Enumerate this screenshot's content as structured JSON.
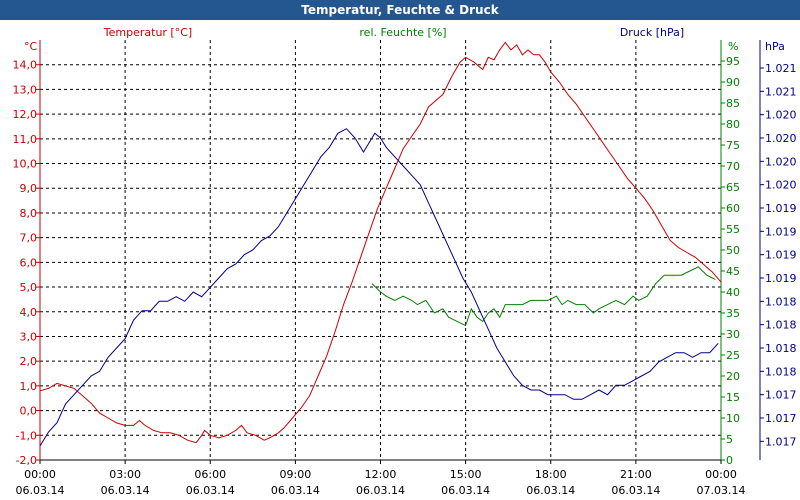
{
  "window_title": "Temperatur, Feuchte & Druck",
  "chart_data": {
    "type": "line",
    "title": "Temperatur, Feuchte & Druck",
    "x_ticks": [
      {
        "time": "00:00",
        "date": "06.03.14"
      },
      {
        "time": "03:00",
        "date": "06.03.14"
      },
      {
        "time": "06:00",
        "date": "06.03.14"
      },
      {
        "time": "09:00",
        "date": "06.03.14"
      },
      {
        "time": "12:00",
        "date": "06.03.14"
      },
      {
        "time": "15:00",
        "date": "06.03.14"
      },
      {
        "time": "18:00",
        "date": "06.03.14"
      },
      {
        "time": "21:00",
        "date": "06.03.14"
      },
      {
        "time": "00:00",
        "date": "07.03.14"
      }
    ],
    "x_range_hours": [
      0,
      24
    ],
    "colors": {
      "temperature": "#cc0000",
      "humidity": "#008000",
      "pressure": "#00008b"
    },
    "axes": {
      "temperature": {
        "unit": "°C",
        "label": "Temperatur [°C]",
        "range": [
          -2.0,
          15.0
        ],
        "ticks": [
          "-2,0",
          "-1,0",
          "0,0",
          "1,0",
          "2,0",
          "3,0",
          "4,0",
          "5,0",
          "6,0",
          "7,0",
          "8,0",
          "9,0",
          "10,0",
          "11,0",
          "12,0",
          "13,0",
          "14,0"
        ]
      },
      "humidity": {
        "unit": "%",
        "label": "rel. Feuchte [%]",
        "range": [
          0,
          100
        ],
        "ticks": [
          "0",
          "5",
          "10",
          "15",
          "20",
          "25",
          "30",
          "35",
          "40",
          "45",
          "50",
          "55",
          "60",
          "65",
          "70",
          "75",
          "80",
          "85",
          "90",
          "95"
        ]
      },
      "pressure": {
        "unit": "hPa",
        "label": "Druck [hPa]",
        "range": [
          1016.8,
          1021.3
        ],
        "ticks": [
          {
            "v": 1017.0,
            "t": "1.017"
          },
          {
            "v": 1017.25,
            "t": "1.017"
          },
          {
            "v": 1017.5,
            "t": "1.017"
          },
          {
            "v": 1017.75,
            "t": "1.018"
          },
          {
            "v": 1018.0,
            "t": "1.018"
          },
          {
            "v": 1018.25,
            "t": "1.018"
          },
          {
            "v": 1018.5,
            "t": "1.018"
          },
          {
            "v": 1018.75,
            "t": "1.019"
          },
          {
            "v": 1019.0,
            "t": "1.019"
          },
          {
            "v": 1019.25,
            "t": "1.019"
          },
          {
            "v": 1019.5,
            "t": "1.019"
          },
          {
            "v": 1019.75,
            "t": "1.020"
          },
          {
            "v": 1020.0,
            "t": "1.020"
          },
          {
            "v": 1020.25,
            "t": "1.020"
          },
          {
            "v": 1020.5,
            "t": "1.020"
          },
          {
            "v": 1020.75,
            "t": "1.021"
          },
          {
            "v": 1021.0,
            "t": "1.021"
          }
        ]
      }
    },
    "series": [
      {
        "name": "Temperatur [°C]",
        "key": "temperature",
        "points": [
          [
            0,
            0.8
          ],
          [
            0.3,
            0.9
          ],
          [
            0.6,
            1.1
          ],
          [
            0.9,
            1.0
          ],
          [
            1.2,
            0.9
          ],
          [
            1.5,
            0.6
          ],
          [
            1.8,
            0.3
          ],
          [
            2.1,
            -0.1
          ],
          [
            2.4,
            -0.3
          ],
          [
            2.7,
            -0.5
          ],
          [
            3.0,
            -0.6
          ],
          [
            3.3,
            -0.6
          ],
          [
            3.5,
            -0.4
          ],
          [
            3.7,
            -0.6
          ],
          [
            4.0,
            -0.8
          ],
          [
            4.3,
            -0.9
          ],
          [
            4.6,
            -0.9
          ],
          [
            4.9,
            -1.0
          ],
          [
            5.2,
            -1.2
          ],
          [
            5.5,
            -1.3
          ],
          [
            5.7,
            -1.0
          ],
          [
            5.8,
            -0.8
          ],
          [
            6.0,
            -1.0
          ],
          [
            6.3,
            -1.1
          ],
          [
            6.6,
            -1.0
          ],
          [
            6.9,
            -0.8
          ],
          [
            7.1,
            -0.6
          ],
          [
            7.3,
            -0.9
          ],
          [
            7.6,
            -1.0
          ],
          [
            7.9,
            -1.2
          ],
          [
            8.1,
            -1.1
          ],
          [
            8.4,
            -0.9
          ],
          [
            8.6,
            -0.7
          ],
          [
            8.9,
            -0.3
          ],
          [
            9.2,
            0.1
          ],
          [
            9.5,
            0.6
          ],
          [
            9.8,
            1.4
          ],
          [
            10.1,
            2.2
          ],
          [
            10.4,
            3.2
          ],
          [
            10.7,
            4.3
          ],
          [
            11.0,
            5.2
          ],
          [
            11.3,
            6.2
          ],
          [
            11.6,
            7.2
          ],
          [
            11.9,
            8.2
          ],
          [
            12.2,
            9.0
          ],
          [
            12.5,
            9.8
          ],
          [
            12.8,
            10.6
          ],
          [
            13.1,
            11.1
          ],
          [
            13.4,
            11.6
          ],
          [
            13.7,
            12.3
          ],
          [
            14.0,
            12.6
          ],
          [
            14.2,
            12.8
          ],
          [
            14.5,
            13.5
          ],
          [
            14.8,
            14.1
          ],
          [
            15.0,
            14.3
          ],
          [
            15.3,
            14.1
          ],
          [
            15.6,
            13.8
          ],
          [
            15.8,
            14.3
          ],
          [
            16.0,
            14.2
          ],
          [
            16.2,
            14.6
          ],
          [
            16.4,
            14.9
          ],
          [
            16.6,
            14.6
          ],
          [
            16.8,
            14.8
          ],
          [
            17.0,
            14.4
          ],
          [
            17.2,
            14.6
          ],
          [
            17.4,
            14.4
          ],
          [
            17.6,
            14.4
          ],
          [
            17.8,
            14.1
          ],
          [
            18.0,
            13.7
          ],
          [
            18.3,
            13.3
          ],
          [
            18.6,
            12.8
          ],
          [
            18.9,
            12.4
          ],
          [
            19.2,
            11.9
          ],
          [
            19.5,
            11.4
          ],
          [
            19.8,
            10.9
          ],
          [
            20.1,
            10.4
          ],
          [
            20.4,
            9.9
          ],
          [
            20.7,
            9.4
          ],
          [
            21.0,
            9.0
          ],
          [
            21.3,
            8.6
          ],
          [
            21.6,
            8.1
          ],
          [
            21.9,
            7.5
          ],
          [
            22.2,
            6.9
          ],
          [
            22.5,
            6.6
          ],
          [
            22.8,
            6.4
          ],
          [
            23.1,
            6.2
          ],
          [
            23.4,
            5.9
          ],
          [
            23.7,
            5.6
          ],
          [
            24.0,
            5.2
          ]
        ]
      },
      {
        "name": "rel. Feuchte [%]",
        "key": "humidity",
        "points": [
          [
            11.7,
            42
          ],
          [
            12.0,
            40
          ],
          [
            12.2,
            39
          ],
          [
            12.5,
            38
          ],
          [
            12.8,
            39
          ],
          [
            13.1,
            38
          ],
          [
            13.3,
            37
          ],
          [
            13.6,
            38
          ],
          [
            13.9,
            35
          ],
          [
            14.2,
            36
          ],
          [
            14.4,
            34
          ],
          [
            14.7,
            33
          ],
          [
            15.0,
            32
          ],
          [
            15.2,
            36
          ],
          [
            15.4,
            34
          ],
          [
            15.6,
            33
          ],
          [
            15.8,
            35
          ],
          [
            16.0,
            36
          ],
          [
            16.2,
            34
          ],
          [
            16.4,
            37
          ],
          [
            16.7,
            37
          ],
          [
            17.0,
            37
          ],
          [
            17.3,
            38
          ],
          [
            17.6,
            38
          ],
          [
            17.9,
            38
          ],
          [
            18.2,
            39
          ],
          [
            18.4,
            37
          ],
          [
            18.6,
            38
          ],
          [
            18.9,
            37
          ],
          [
            19.2,
            37
          ],
          [
            19.5,
            35
          ],
          [
            19.7,
            36
          ],
          [
            20.0,
            37
          ],
          [
            20.3,
            38
          ],
          [
            20.6,
            37
          ],
          [
            20.9,
            39
          ],
          [
            21.1,
            38
          ],
          [
            21.4,
            39
          ],
          [
            21.7,
            42
          ],
          [
            22.0,
            44
          ],
          [
            22.3,
            44
          ],
          [
            22.6,
            44
          ],
          [
            22.9,
            45
          ],
          [
            23.2,
            46
          ],
          [
            23.5,
            44
          ],
          [
            23.8,
            43
          ]
        ]
      },
      {
        "name": "Druck [hPa]",
        "key": "pressure",
        "points": [
          [
            0,
            1016.95
          ],
          [
            0.3,
            1017.1
          ],
          [
            0.6,
            1017.2
          ],
          [
            0.9,
            1017.4
          ],
          [
            1.2,
            1017.5
          ],
          [
            1.5,
            1017.6
          ],
          [
            1.8,
            1017.7
          ],
          [
            2.1,
            1017.75
          ],
          [
            2.4,
            1017.9
          ],
          [
            2.7,
            1018.0
          ],
          [
            3.0,
            1018.1
          ],
          [
            3.3,
            1018.3
          ],
          [
            3.6,
            1018.4
          ],
          [
            3.9,
            1018.4
          ],
          [
            4.2,
            1018.5
          ],
          [
            4.5,
            1018.5
          ],
          [
            4.8,
            1018.55
          ],
          [
            5.1,
            1018.5
          ],
          [
            5.4,
            1018.6
          ],
          [
            5.7,
            1018.55
          ],
          [
            6.0,
            1018.65
          ],
          [
            6.3,
            1018.75
          ],
          [
            6.6,
            1018.85
          ],
          [
            6.9,
            1018.9
          ],
          [
            7.2,
            1019.0
          ],
          [
            7.5,
            1019.05
          ],
          [
            7.8,
            1019.15
          ],
          [
            8.1,
            1019.2
          ],
          [
            8.4,
            1019.3
          ],
          [
            8.7,
            1019.45
          ],
          [
            9.0,
            1019.6
          ],
          [
            9.3,
            1019.75
          ],
          [
            9.6,
            1019.9
          ],
          [
            9.9,
            1020.05
          ],
          [
            10.2,
            1020.15
          ],
          [
            10.5,
            1020.3
          ],
          [
            10.8,
            1020.35
          ],
          [
            11.1,
            1020.25
          ],
          [
            11.4,
            1020.1
          ],
          [
            11.6,
            1020.2
          ],
          [
            11.8,
            1020.3
          ],
          [
            12.0,
            1020.25
          ],
          [
            12.2,
            1020.15
          ],
          [
            12.5,
            1020.05
          ],
          [
            12.8,
            1019.95
          ],
          [
            13.1,
            1019.85
          ],
          [
            13.4,
            1019.75
          ],
          [
            13.7,
            1019.55
          ],
          [
            14.0,
            1019.35
          ],
          [
            14.3,
            1019.15
          ],
          [
            14.6,
            1018.95
          ],
          [
            14.9,
            1018.75
          ],
          [
            15.2,
            1018.6
          ],
          [
            15.5,
            1018.4
          ],
          [
            15.8,
            1018.2
          ],
          [
            16.1,
            1018.0
          ],
          [
            16.4,
            1017.85
          ],
          [
            16.7,
            1017.7
          ],
          [
            17.0,
            1017.6
          ],
          [
            17.3,
            1017.55
          ],
          [
            17.6,
            1017.55
          ],
          [
            17.9,
            1017.5
          ],
          [
            18.2,
            1017.5
          ],
          [
            18.5,
            1017.5
          ],
          [
            18.8,
            1017.45
          ],
          [
            19.1,
            1017.45
          ],
          [
            19.4,
            1017.5
          ],
          [
            19.7,
            1017.55
          ],
          [
            20.0,
            1017.5
          ],
          [
            20.3,
            1017.6
          ],
          [
            20.6,
            1017.6
          ],
          [
            20.9,
            1017.65
          ],
          [
            21.2,
            1017.7
          ],
          [
            21.5,
            1017.75
          ],
          [
            21.8,
            1017.85
          ],
          [
            22.1,
            1017.9
          ],
          [
            22.4,
            1017.95
          ],
          [
            22.7,
            1017.95
          ],
          [
            23.0,
            1017.9
          ],
          [
            23.3,
            1017.95
          ],
          [
            23.6,
            1017.95
          ],
          [
            23.9,
            1018.05
          ]
        ]
      }
    ]
  }
}
